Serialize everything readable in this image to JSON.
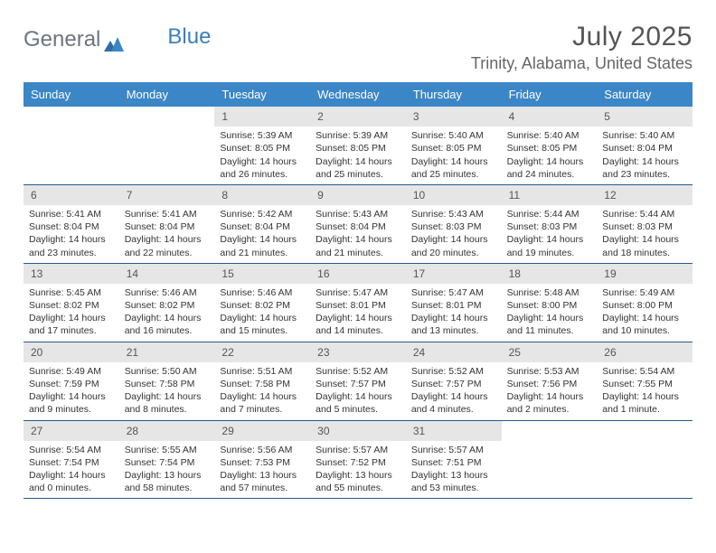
{
  "brand": {
    "part1": "General",
    "part2": "Blue"
  },
  "header": {
    "month_title": "July 2025",
    "location": "Trinity, Alabama, United States"
  },
  "colors": {
    "header_bg": "#3b86c6",
    "row_divider": "#295a88",
    "daynum_bg": "#e6e6e6",
    "page_bg": "#ffffff",
    "title_color": "#555555",
    "location_color": "#666666",
    "logo_gray": "#6c757d",
    "logo_blue": "#3b7fbf"
  },
  "weekdays": [
    "Sunday",
    "Monday",
    "Tuesday",
    "Wednesday",
    "Thursday",
    "Friday",
    "Saturday"
  ],
  "weeks": [
    [
      {
        "empty": true
      },
      {
        "empty": true
      },
      {
        "num": "1",
        "sunrise": "Sunrise: 5:39 AM",
        "sunset": "Sunset: 8:05 PM",
        "day1": "Daylight: 14 hours",
        "day2": "and 26 minutes."
      },
      {
        "num": "2",
        "sunrise": "Sunrise: 5:39 AM",
        "sunset": "Sunset: 8:05 PM",
        "day1": "Daylight: 14 hours",
        "day2": "and 25 minutes."
      },
      {
        "num": "3",
        "sunrise": "Sunrise: 5:40 AM",
        "sunset": "Sunset: 8:05 PM",
        "day1": "Daylight: 14 hours",
        "day2": "and 25 minutes."
      },
      {
        "num": "4",
        "sunrise": "Sunrise: 5:40 AM",
        "sunset": "Sunset: 8:05 PM",
        "day1": "Daylight: 14 hours",
        "day2": "and 24 minutes."
      },
      {
        "num": "5",
        "sunrise": "Sunrise: 5:40 AM",
        "sunset": "Sunset: 8:04 PM",
        "day1": "Daylight: 14 hours",
        "day2": "and 23 minutes."
      }
    ],
    [
      {
        "num": "6",
        "sunrise": "Sunrise: 5:41 AM",
        "sunset": "Sunset: 8:04 PM",
        "day1": "Daylight: 14 hours",
        "day2": "and 23 minutes."
      },
      {
        "num": "7",
        "sunrise": "Sunrise: 5:41 AM",
        "sunset": "Sunset: 8:04 PM",
        "day1": "Daylight: 14 hours",
        "day2": "and 22 minutes."
      },
      {
        "num": "8",
        "sunrise": "Sunrise: 5:42 AM",
        "sunset": "Sunset: 8:04 PM",
        "day1": "Daylight: 14 hours",
        "day2": "and 21 minutes."
      },
      {
        "num": "9",
        "sunrise": "Sunrise: 5:43 AM",
        "sunset": "Sunset: 8:04 PM",
        "day1": "Daylight: 14 hours",
        "day2": "and 21 minutes."
      },
      {
        "num": "10",
        "sunrise": "Sunrise: 5:43 AM",
        "sunset": "Sunset: 8:03 PM",
        "day1": "Daylight: 14 hours",
        "day2": "and 20 minutes."
      },
      {
        "num": "11",
        "sunrise": "Sunrise: 5:44 AM",
        "sunset": "Sunset: 8:03 PM",
        "day1": "Daylight: 14 hours",
        "day2": "and 19 minutes."
      },
      {
        "num": "12",
        "sunrise": "Sunrise: 5:44 AM",
        "sunset": "Sunset: 8:03 PM",
        "day1": "Daylight: 14 hours",
        "day2": "and 18 minutes."
      }
    ],
    [
      {
        "num": "13",
        "sunrise": "Sunrise: 5:45 AM",
        "sunset": "Sunset: 8:02 PM",
        "day1": "Daylight: 14 hours",
        "day2": "and 17 minutes."
      },
      {
        "num": "14",
        "sunrise": "Sunrise: 5:46 AM",
        "sunset": "Sunset: 8:02 PM",
        "day1": "Daylight: 14 hours",
        "day2": "and 16 minutes."
      },
      {
        "num": "15",
        "sunrise": "Sunrise: 5:46 AM",
        "sunset": "Sunset: 8:02 PM",
        "day1": "Daylight: 14 hours",
        "day2": "and 15 minutes."
      },
      {
        "num": "16",
        "sunrise": "Sunrise: 5:47 AM",
        "sunset": "Sunset: 8:01 PM",
        "day1": "Daylight: 14 hours",
        "day2": "and 14 minutes."
      },
      {
        "num": "17",
        "sunrise": "Sunrise: 5:47 AM",
        "sunset": "Sunset: 8:01 PM",
        "day1": "Daylight: 14 hours",
        "day2": "and 13 minutes."
      },
      {
        "num": "18",
        "sunrise": "Sunrise: 5:48 AM",
        "sunset": "Sunset: 8:00 PM",
        "day1": "Daylight: 14 hours",
        "day2": "and 11 minutes."
      },
      {
        "num": "19",
        "sunrise": "Sunrise: 5:49 AM",
        "sunset": "Sunset: 8:00 PM",
        "day1": "Daylight: 14 hours",
        "day2": "and 10 minutes."
      }
    ],
    [
      {
        "num": "20",
        "sunrise": "Sunrise: 5:49 AM",
        "sunset": "Sunset: 7:59 PM",
        "day1": "Daylight: 14 hours",
        "day2": "and 9 minutes."
      },
      {
        "num": "21",
        "sunrise": "Sunrise: 5:50 AM",
        "sunset": "Sunset: 7:58 PM",
        "day1": "Daylight: 14 hours",
        "day2": "and 8 minutes."
      },
      {
        "num": "22",
        "sunrise": "Sunrise: 5:51 AM",
        "sunset": "Sunset: 7:58 PM",
        "day1": "Daylight: 14 hours",
        "day2": "and 7 minutes."
      },
      {
        "num": "23",
        "sunrise": "Sunrise: 5:52 AM",
        "sunset": "Sunset: 7:57 PM",
        "day1": "Daylight: 14 hours",
        "day2": "and 5 minutes."
      },
      {
        "num": "24",
        "sunrise": "Sunrise: 5:52 AM",
        "sunset": "Sunset: 7:57 PM",
        "day1": "Daylight: 14 hours",
        "day2": "and 4 minutes."
      },
      {
        "num": "25",
        "sunrise": "Sunrise: 5:53 AM",
        "sunset": "Sunset: 7:56 PM",
        "day1": "Daylight: 14 hours",
        "day2": "and 2 minutes."
      },
      {
        "num": "26",
        "sunrise": "Sunrise: 5:54 AM",
        "sunset": "Sunset: 7:55 PM",
        "day1": "Daylight: 14 hours",
        "day2": "and 1 minute."
      }
    ],
    [
      {
        "num": "27",
        "sunrise": "Sunrise: 5:54 AM",
        "sunset": "Sunset: 7:54 PM",
        "day1": "Daylight: 14 hours",
        "day2": "and 0 minutes."
      },
      {
        "num": "28",
        "sunrise": "Sunrise: 5:55 AM",
        "sunset": "Sunset: 7:54 PM",
        "day1": "Daylight: 13 hours",
        "day2": "and 58 minutes."
      },
      {
        "num": "29",
        "sunrise": "Sunrise: 5:56 AM",
        "sunset": "Sunset: 7:53 PM",
        "day1": "Daylight: 13 hours",
        "day2": "and 57 minutes."
      },
      {
        "num": "30",
        "sunrise": "Sunrise: 5:57 AM",
        "sunset": "Sunset: 7:52 PM",
        "day1": "Daylight: 13 hours",
        "day2": "and 55 minutes."
      },
      {
        "num": "31",
        "sunrise": "Sunrise: 5:57 AM",
        "sunset": "Sunset: 7:51 PM",
        "day1": "Daylight: 13 hours",
        "day2": "and 53 minutes."
      },
      {
        "empty": true
      },
      {
        "empty": true
      }
    ]
  ]
}
